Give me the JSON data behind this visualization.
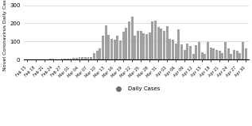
{
  "tick_labels": [
    "Feb 15",
    "Feb 18",
    "Feb 21",
    "Feb 24",
    "Feb 27",
    "Mar 01",
    "Mar 04",
    "Mar 07",
    "Mar 10",
    "Mar 13",
    "Mar 16",
    "Mar 19",
    "Mar 22",
    "Mar 25",
    "Mar 28",
    "Mar 31",
    "Apr 03",
    "Apr 06",
    "Apr 09",
    "Apr 12",
    "Apr 15",
    "Apr 18",
    "Apr 21",
    "Apr 24",
    "Apr 27",
    "Apr 30"
  ],
  "bar_values": [
    2,
    0,
    0,
    1,
    1,
    1,
    1,
    1,
    3,
    3,
    1,
    2,
    3,
    3,
    3,
    3,
    9,
    10,
    12,
    12,
    12,
    13,
    12,
    35,
    50,
    60,
    130,
    190,
    135,
    115,
    110,
    130,
    107,
    155,
    175,
    210,
    235,
    130,
    160,
    157,
    145,
    140,
    150,
    210,
    213,
    180,
    170,
    160,
    185,
    115,
    110,
    90,
    165,
    85,
    55,
    90,
    75,
    30,
    80,
    95,
    40,
    30,
    95,
    65,
    60,
    55,
    50,
    35,
    97,
    60,
    30,
    55,
    50,
    35,
    97,
    60
  ],
  "bar_color": "#a0a0a0",
  "ylabel": "Novel Coronavirus Daily Cases",
  "legend_label": "Daily Cases",
  "legend_marker_color": "#707070",
  "ylim": [
    0,
    300
  ],
  "yticks": [
    0,
    100,
    200,
    300
  ],
  "background_color": "#ffffff",
  "grid_color": "#d0d0d0"
}
